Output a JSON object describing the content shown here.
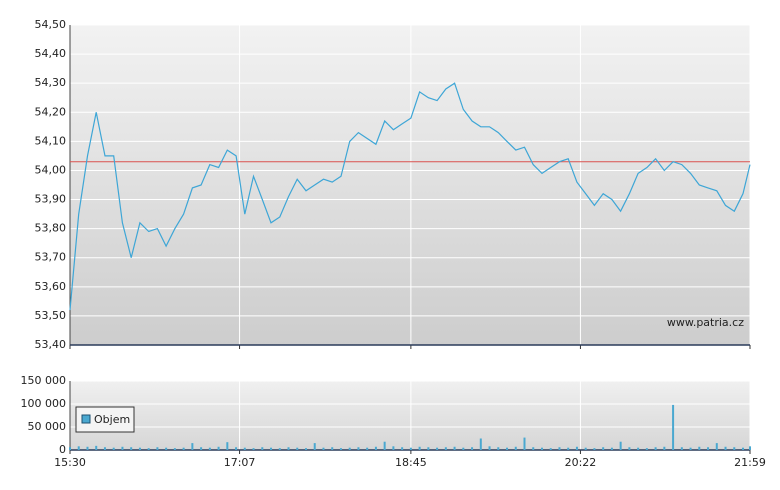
{
  "chart_data": [
    {
      "type": "line",
      "ylim": [
        53.4,
        54.5
      ],
      "yticks": [
        {
          "value": 53.4,
          "label": "53,40"
        },
        {
          "value": 53.5,
          "label": "53,50"
        },
        {
          "value": 53.6,
          "label": "53,60"
        },
        {
          "value": 53.7,
          "label": "53,70"
        },
        {
          "value": 53.8,
          "label": "53,80"
        },
        {
          "value": 53.9,
          "label": "53,90"
        },
        {
          "value": 54.0,
          "label": "54,00"
        },
        {
          "value": 54.1,
          "label": "54,10"
        },
        {
          "value": 54.2,
          "label": "54,20"
        },
        {
          "value": 54.3,
          "label": "54,30"
        },
        {
          "value": 54.4,
          "label": "54,40"
        },
        {
          "value": 54.5,
          "label": "54,50"
        }
      ],
      "xlim": [
        930,
        1319
      ],
      "grid": true,
      "watermark": "www.patria.cz",
      "reference_line": {
        "value": 54.03,
        "color": "#d9534f"
      },
      "x": [
        930,
        935,
        940,
        945,
        950,
        955,
        960,
        965,
        970,
        975,
        980,
        985,
        990,
        995,
        1000,
        1005,
        1010,
        1015,
        1020,
        1025,
        1030,
        1035,
        1040,
        1045,
        1050,
        1055,
        1060,
        1065,
        1070,
        1075,
        1080,
        1085,
        1090,
        1095,
        1100,
        1105,
        1110,
        1115,
        1120,
        1125,
        1130,
        1135,
        1140,
        1145,
        1150,
        1155,
        1160,
        1165,
        1170,
        1175,
        1180,
        1185,
        1190,
        1195,
        1200,
        1205,
        1210,
        1215,
        1220,
        1225,
        1230,
        1235,
        1240,
        1245,
        1250,
        1255,
        1260,
        1265,
        1270,
        1275,
        1280,
        1285,
        1290,
        1295,
        1300,
        1305,
        1310,
        1315,
        1319
      ],
      "series": [
        {
          "color": "#3ea6d6",
          "values": [
            53.52,
            53.85,
            54.05,
            54.2,
            54.05,
            54.05,
            53.82,
            53.7,
            53.82,
            53.79,
            53.8,
            53.74,
            53.8,
            53.85,
            53.94,
            53.95,
            54.02,
            54.01,
            54.07,
            54.05,
            53.85,
            53.98,
            53.9,
            53.82,
            53.84,
            53.91,
            53.97,
            53.93,
            53.95,
            53.97,
            53.96,
            53.98,
            54.1,
            54.13,
            54.11,
            54.09,
            54.17,
            54.14,
            54.16,
            54.18,
            54.27,
            54.25,
            54.24,
            54.28,
            54.3,
            54.21,
            54.17,
            54.15,
            54.15,
            54.13,
            54.1,
            54.07,
            54.08,
            54.02,
            53.99,
            54.01,
            54.03,
            54.04,
            53.96,
            53.92,
            53.88,
            53.92,
            53.9,
            53.86,
            53.92,
            53.99,
            54.01,
            54.04,
            54,
            54.03,
            54.02,
            53.99,
            53.95,
            53.94,
            53.93,
            53.88,
            53.86,
            53.92,
            54.02
          ]
        }
      ]
    },
    {
      "type": "bar",
      "ylim": [
        0,
        150000
      ],
      "yticks": [
        0,
        {
          "value": 50000,
          "label": "50 000"
        },
        {
          "value": 100000,
          "label": "100 000"
        },
        {
          "value": 150000,
          "label": "150 000"
        }
      ],
      "xlim": [
        930,
        1319
      ],
      "xticks": [
        {
          "value": 930,
          "label": "15:30"
        },
        {
          "value": 1027,
          "label": "17:07"
        },
        {
          "value": 1125,
          "label": "18:45"
        },
        {
          "value": 1222,
          "label": "20:22"
        },
        {
          "value": 1319,
          "label": "21:59"
        }
      ],
      "grid": true,
      "x": [
        930,
        935,
        940,
        945,
        950,
        955,
        960,
        965,
        970,
        975,
        980,
        985,
        990,
        995,
        1000,
        1005,
        1010,
        1015,
        1020,
        1025,
        1030,
        1035,
        1040,
        1045,
        1050,
        1055,
        1060,
        1065,
        1070,
        1075,
        1080,
        1085,
        1090,
        1095,
        1100,
        1105,
        1110,
        1115,
        1120,
        1125,
        1130,
        1135,
        1140,
        1145,
        1150,
        1155,
        1160,
        1165,
        1170,
        1175,
        1180,
        1185,
        1190,
        1195,
        1200,
        1205,
        1210,
        1215,
        1220,
        1225,
        1230,
        1235,
        1240,
        1245,
        1250,
        1255,
        1260,
        1265,
        1270,
        1275,
        1280,
        1285,
        1290,
        1295,
        1300,
        1305,
        1310,
        1315,
        1319
      ],
      "legend": "upper left",
      "series": [
        {
          "name": "Objem",
          "color": "#4aa8d0",
          "values": [
            6000,
            8000,
            7000,
            9000,
            6000,
            5000,
            7000,
            6000,
            5000,
            4000,
            6000,
            5000,
            4000,
            5000,
            15000,
            6000,
            5000,
            7000,
            17000,
            6000,
            5000,
            4000,
            6000,
            5000,
            4000,
            6000,
            5000,
            4000,
            15000,
            5000,
            6000,
            4000,
            5000,
            6000,
            5000,
            7000,
            18000,
            8000,
            6000,
            5000,
            7000,
            6000,
            5000,
            6000,
            7000,
            5000,
            6000,
            25000,
            8000,
            6000,
            5000,
            7000,
            27000,
            6000,
            5000,
            4000,
            6000,
            5000,
            7000,
            5000,
            4000,
            6000,
            5000,
            18000,
            6000,
            5000,
            4000,
            6000,
            7000,
            98000,
            6000,
            5000,
            7000,
            6000,
            15000,
            7000,
            6000,
            5000,
            8000
          ]
        }
      ]
    }
  ]
}
